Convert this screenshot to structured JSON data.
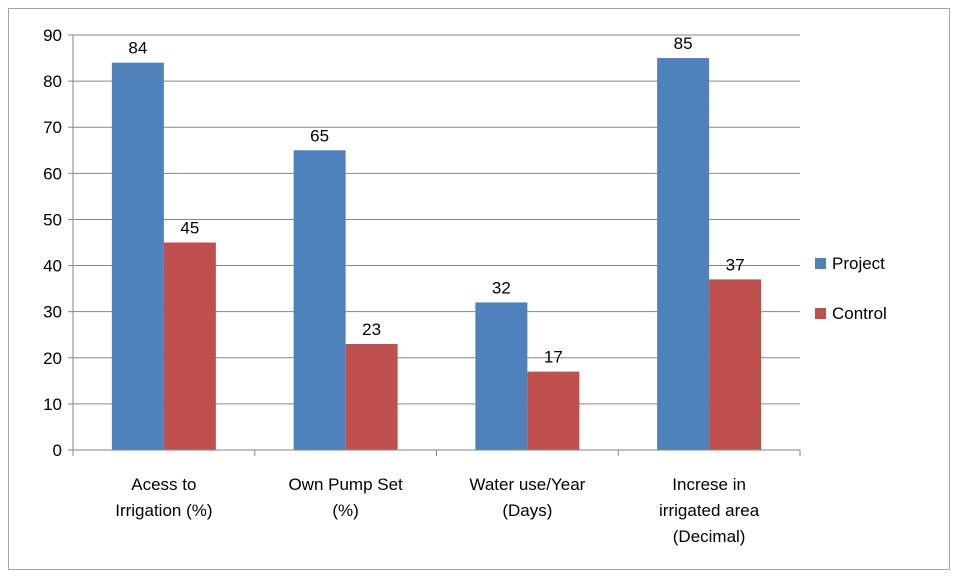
{
  "chart_data": {
    "type": "bar",
    "categories": [
      [
        "Acess to",
        "Irrigation (%)"
      ],
      [
        "Own Pump Set",
        "(%)"
      ],
      [
        "Water use/Year",
        "(Days)"
      ],
      [
        "Increse in",
        "irrigated area",
        "(Decimal)"
      ]
    ],
    "series": [
      {
        "name": "Project",
        "values": [
          84,
          65,
          32,
          85
        ],
        "color": "#4f81bd"
      },
      {
        "name": "Control",
        "values": [
          45,
          23,
          17,
          37
        ],
        "color": "#c0504d"
      }
    ],
    "ylim": [
      0,
      90
    ],
    "yticks": [
      0,
      10,
      20,
      30,
      40,
      50,
      60,
      70,
      80,
      90
    ],
    "grid": true,
    "data_labels": true,
    "legend_position": "right"
  }
}
